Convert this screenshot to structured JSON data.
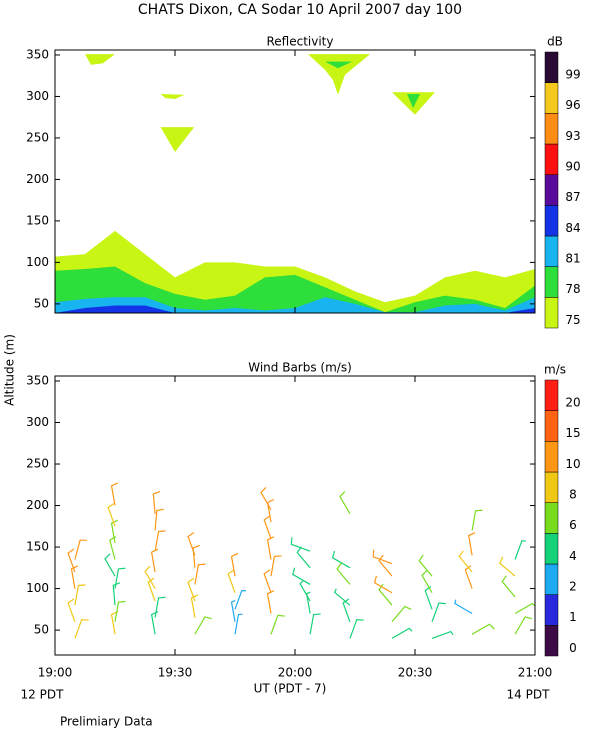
{
  "title": "CHATS Dixon, CA  Sodar  10 April 2007  day 100",
  "footnote": "Prelimiary Data",
  "chart_data": [
    {
      "type": "contour",
      "title": "Reflectivity",
      "x": [
        19.0,
        19.125,
        19.25,
        19.375,
        19.5,
        19.625,
        19.75,
        19.875,
        20.0,
        20.125,
        20.25,
        20.375,
        20.5,
        20.625,
        20.75,
        20.875,
        21.0
      ],
      "series": [
        {
          "color": "#c8f514",
          "values": [
            107,
            110,
            138,
            110,
            82,
            100,
            100,
            95,
            95,
            82,
            65,
            52,
            60,
            82,
            90,
            82,
            92
          ],
          "patches": [
            {
              "x": [
                19.125,
                19.25,
                19.2,
                19.15
              ],
              "y": [
                351,
                351,
                340,
                338
              ]
            },
            {
              "x": [
                19.44,
                19.54,
                19.5,
                19.46
              ],
              "y": [
                303,
                302,
                297,
                298
              ]
            },
            {
              "x": [
                19.44,
                19.58,
                19.5
              ],
              "y": [
                263,
                263,
                233
              ]
            },
            {
              "x": [
                20.054,
                20.313,
                20.208,
                20.179,
                20.158,
                20.125
              ],
              "y": [
                351,
                351,
                326,
                302,
                320,
                332
              ]
            },
            {
              "x": [
                20.404,
                20.583,
                20.5
              ],
              "y": [
                305,
                305,
                278
              ]
            }
          ]
        },
        {
          "color": "#2ede3a",
          "values": [
            90,
            92,
            95,
            75,
            62,
            55,
            60,
            82,
            85,
            70,
            55,
            40,
            52,
            60,
            55,
            45,
            72
          ],
          "patches": [
            {
              "x": [
                20.125,
                20.238,
                20.179
              ],
              "y": [
                342,
                342,
                334
              ]
            },
            {
              "x": [
                20.467,
                20.521,
                20.492
              ],
              "y": [
                303,
                303,
                286
              ]
            }
          ]
        },
        {
          "color": "#18b4f0",
          "values": [
            52,
            56,
            58,
            58,
            45,
            42,
            45,
            42,
            45,
            58,
            50,
            40,
            40,
            48,
            50,
            42,
            58
          ]
        },
        {
          "color": "#1432e6",
          "values": [
            39,
            45,
            48,
            48,
            39,
            39,
            39,
            39,
            39,
            39,
            39,
            39,
            39,
            39,
            39,
            39,
            45
          ]
        }
      ],
      "xlim": [
        19,
        21
      ],
      "xticks": [
        19,
        19.5,
        20,
        20.5,
        21
      ],
      "ylim": [
        39,
        356
      ],
      "yticks": [
        50,
        100,
        150,
        200,
        250,
        300,
        350
      ],
      "colorbar": {
        "label": "dB",
        "ticks": [
          75,
          78,
          81,
          84,
          87,
          90,
          93,
          96,
          99
        ],
        "colors": [
          "#c8f514",
          "#2ede3a",
          "#18b4f0",
          "#1432e6",
          "#5a0a9a",
          "#ff1010",
          "#ff8c14",
          "#f5c81e",
          "#2a0a35"
        ]
      }
    },
    {
      "type": "barbs",
      "title": "Wind Barbs (m/s)",
      "ylabel": "Altitude (m)",
      "xlabel": "UT  (PDT - 7)",
      "x_sublabels": [
        "12 PDT",
        "14 PDT"
      ],
      "x": [
        19.083,
        19.083,
        19.083,
        19.083,
        19.083,
        19.083,
        19.25,
        19.25,
        19.25,
        19.25,
        19.25,
        19.25,
        19.25,
        19.25,
        19.25,
        19.417,
        19.417,
        19.417,
        19.417,
        19.417,
        19.417,
        19.417,
        19.417,
        19.583,
        19.583,
        19.583,
        19.583,
        19.583,
        19.583,
        19.75,
        19.75,
        19.75,
        19.75,
        19.75,
        19.9,
        19.9,
        19.9,
        19.9,
        19.9,
        19.9,
        19.9,
        19.9,
        20.063,
        20.063,
        20.063,
        20.063,
        20.063,
        20.063,
        20.229,
        20.229,
        20.229,
        20.229,
        20.229,
        20.229,
        20.404,
        20.404,
        20.404,
        20.404,
        20.404,
        20.404,
        20.571,
        20.571,
        20.571,
        20.571,
        20.571,
        20.738,
        20.738,
        20.738,
        20.738,
        20.738,
        20.738,
        20.917,
        20.917,
        20.917,
        20.917,
        20.917
      ],
      "altitude": [
        40,
        60,
        80,
        100,
        120,
        135,
        45,
        60,
        80,
        100,
        115,
        135,
        155,
        175,
        200,
        45,
        65,
        85,
        100,
        120,
        145,
        170,
        190,
        45,
        65,
        85,
        105,
        125,
        140,
        45,
        60,
        75,
        95,
        115,
        45,
        70,
        95,
        115,
        135,
        160,
        180,
        195,
        45,
        70,
        85,
        105,
        125,
        145,
        40,
        60,
        80,
        105,
        125,
        190,
        40,
        60,
        80,
        95,
        115,
        130,
        40,
        60,
        75,
        95,
        115,
        45,
        70,
        100,
        120,
        140,
        170,
        45,
        70,
        90,
        115,
        135
      ],
      "speed": [
        9,
        9,
        9,
        10,
        10,
        11,
        8,
        6,
        5,
        5,
        5,
        6,
        7,
        8,
        11,
        5,
        5,
        9,
        9,
        10,
        10,
        11,
        11,
        6,
        9,
        9,
        10,
        10,
        10,
        3,
        3,
        3,
        9,
        12,
        6,
        10,
        10,
        11,
        11,
        12,
        12,
        12,
        5,
        4,
        4,
        5,
        5,
        5,
        5,
        5,
        4,
        6,
        5,
        6,
        4,
        6,
        7,
        10,
        10,
        11,
        4,
        5,
        5,
        6,
        6,
        6,
        3,
        10,
        9,
        10,
        6,
        6,
        6,
        7,
        9,
        4
      ],
      "direction": [
        20,
        340,
        10,
        350,
        340,
        15,
        350,
        10,
        355,
        10,
        330,
        345,
        350,
        340,
        350,
        350,
        10,
        340,
        330,
        350,
        10,
        5,
        355,
        30,
        350,
        340,
        10,
        355,
        340,
        10,
        350,
        20,
        340,
        350,
        20,
        350,
        340,
        10,
        350,
        340,
        350,
        330,
        10,
        350,
        330,
        300,
        320,
        290,
        20,
        340,
        310,
        320,
        300,
        330,
        60,
        40,
        320,
        300,
        320,
        290,
        70,
        20,
        340,
        330,
        320,
        60,
        300,
        340,
        320,
        350,
        10,
        30,
        60,
        320,
        310,
        20
      ],
      "xlim": [
        19,
        21
      ],
      "xticks": [
        {
          "value": 19,
          "label": "19:00"
        },
        {
          "value": 19.5,
          "label": "19:30"
        },
        {
          "value": 20,
          "label": "20:00"
        },
        {
          "value": 20.5,
          "label": "20:30"
        },
        {
          "value": 21,
          "label": "21:00"
        }
      ],
      "ylim": [
        20,
        356
      ],
      "yticks": [
        50,
        100,
        150,
        200,
        250,
        300,
        350
      ],
      "colorbar": {
        "label": "m/s",
        "ticks": [
          0,
          1,
          2,
          4,
          6,
          8,
          10,
          15,
          20
        ],
        "colors": [
          "#3c0a46",
          "#2828dc",
          "#1eaaf0",
          "#14d278",
          "#78dc1e",
          "#f0c814",
          "#ff9614",
          "#ff6414",
          "#ff1e14"
        ]
      }
    }
  ]
}
